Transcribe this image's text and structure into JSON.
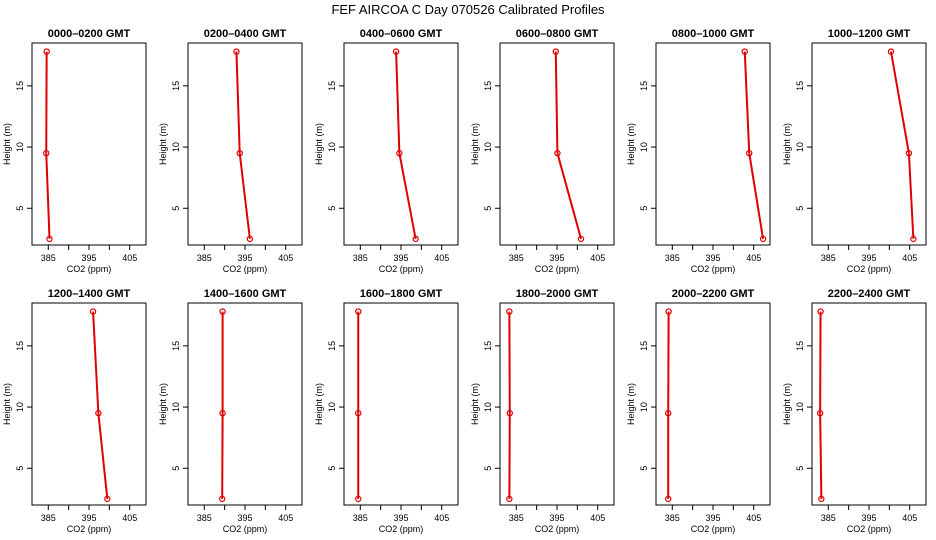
{
  "chart_data": {
    "type": "line",
    "title": "FEF AIRCOA C  Day 070526  Calibrated Profiles",
    "xlabel": "CO2 (ppm)",
    "ylabel": "Height (m)",
    "xlim": [
      381,
      409
    ],
    "ylim": [
      2,
      18.5
    ],
    "xticks": [
      385,
      390,
      395,
      400,
      405
    ],
    "xtick_labels": [
      "385",
      "395",
      "405"
    ],
    "yticks": [
      5,
      10,
      15
    ],
    "colors": {
      "profile": "#e00000"
    },
    "panels": [
      {
        "title": "0000–0200 GMT",
        "heights": [
          2.5,
          9.5,
          17.8
        ],
        "co2": [
          385.3,
          384.5,
          384.6
        ]
      },
      {
        "title": "0200–0400 GMT",
        "heights": [
          2.5,
          9.5,
          17.8
        ],
        "co2": [
          396.2,
          393.7,
          392.9
        ]
      },
      {
        "title": "0400–0600 GMT",
        "heights": [
          2.5,
          9.5,
          17.8
        ],
        "co2": [
          398.6,
          394.6,
          393.8
        ]
      },
      {
        "title": "0600–0800 GMT",
        "heights": [
          2.5,
          9.5,
          17.8
        ],
        "co2": [
          400.9,
          395.1,
          394.7
        ]
      },
      {
        "title": "0800–1000 GMT",
        "heights": [
          2.5,
          9.5,
          17.8
        ],
        "co2": [
          407.3,
          403.9,
          402.8
        ]
      },
      {
        "title": "1000–1200 GMT",
        "heights": [
          2.5,
          9.5,
          17.8
        ],
        "co2": [
          405.9,
          404.8,
          400.4
        ]
      },
      {
        "title": "1200–1400 GMT",
        "heights": [
          2.5,
          9.5,
          17.8
        ],
        "co2": [
          399.5,
          397.3,
          396.0
        ]
      },
      {
        "title": "1400–1600 GMT",
        "heights": [
          2.5,
          9.5,
          17.8
        ],
        "co2": [
          389.4,
          389.5,
          389.5
        ]
      },
      {
        "title": "1600–1800 GMT",
        "heights": [
          2.5,
          9.5,
          17.8
        ],
        "co2": [
          384.5,
          384.5,
          384.5
        ]
      },
      {
        "title": "1800–2000 GMT",
        "heights": [
          2.5,
          9.5,
          17.8
        ],
        "co2": [
          383.3,
          383.4,
          383.3
        ]
      },
      {
        "title": "2000–2200 GMT",
        "heights": [
          2.5,
          9.5,
          17.8
        ],
        "co2": [
          384.0,
          384.0,
          384.1
        ]
      },
      {
        "title": "2200–2400 GMT",
        "heights": [
          2.5,
          9.5,
          17.8
        ],
        "co2": [
          383.3,
          383.0,
          383.1
        ]
      }
    ]
  }
}
